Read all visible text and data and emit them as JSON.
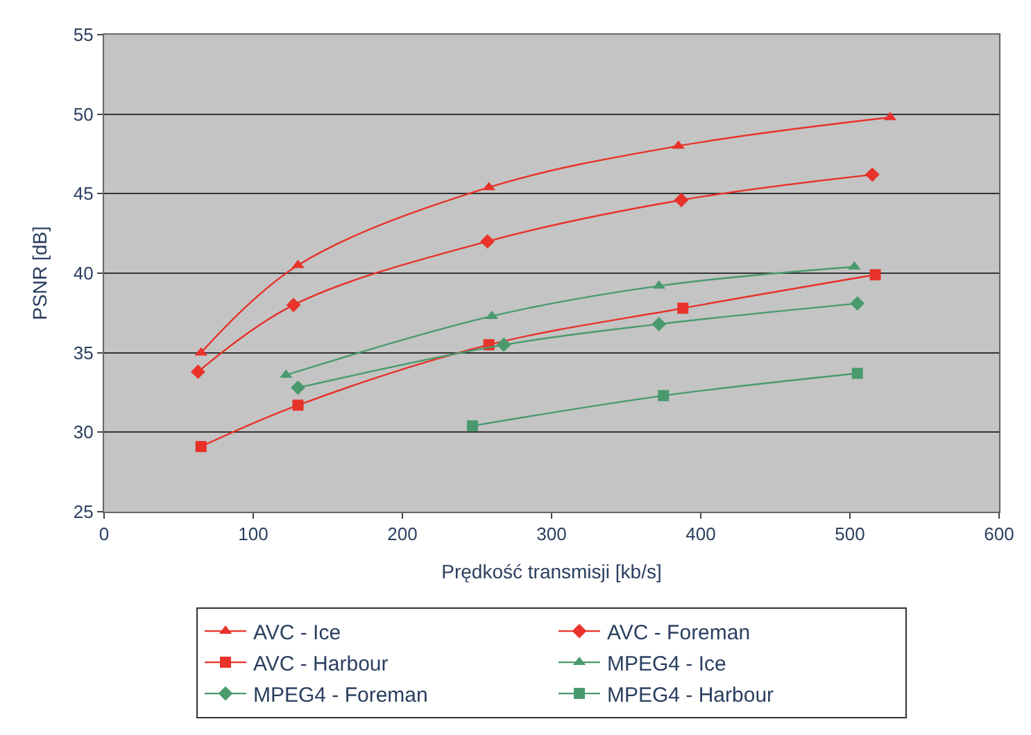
{
  "chart_data": {
    "type": "line",
    "xlabel": "Prędkość transmisji [kb/s]",
    "ylabel": "PSNR [dB]",
    "xlim": [
      0,
      600
    ],
    "xticks": [
      0,
      100,
      200,
      300,
      400,
      500,
      600
    ],
    "ylim": [
      25,
      55
    ],
    "yticks": [
      25,
      30,
      35,
      40,
      45,
      50,
      55
    ],
    "grid": "y",
    "legend": "bottom",
    "series": [
      {
        "name": "AVC - Ice",
        "color": "#e8322a",
        "marker": "triangle",
        "x": [
          65,
          130,
          258,
          385,
          527
        ],
        "values": [
          35.0,
          40.5,
          45.4,
          48.0,
          49.8
        ]
      },
      {
        "name": "AVC - Foreman",
        "color": "#e8322a",
        "marker": "diamond",
        "x": [
          63,
          127,
          257,
          387,
          515
        ],
        "values": [
          33.8,
          38.0,
          42.0,
          44.6,
          46.2
        ]
      },
      {
        "name": "AVC - Harbour",
        "color": "#e8322a",
        "marker": "square",
        "x": [
          65,
          130,
          258,
          388,
          517
        ],
        "values": [
          29.1,
          31.7,
          35.5,
          37.8,
          39.9
        ]
      },
      {
        "name": "MPEG4 - Ice",
        "color": "#4a9a6e",
        "marker": "triangle",
        "x": [
          122,
          260,
          372,
          503
        ],
        "values": [
          33.6,
          37.3,
          39.2,
          40.4
        ]
      },
      {
        "name": "MPEG4 - Foreman",
        "color": "#4a9a6e",
        "marker": "diamond",
        "x": [
          130,
          268,
          372,
          505
        ],
        "values": [
          32.8,
          35.5,
          36.8,
          38.1
        ]
      },
      {
        "name": "MPEG4 - Harbour",
        "color": "#4a9a6e",
        "marker": "square",
        "x": [
          247,
          375,
          505
        ],
        "values": [
          30.4,
          32.3,
          33.7
        ]
      }
    ]
  }
}
